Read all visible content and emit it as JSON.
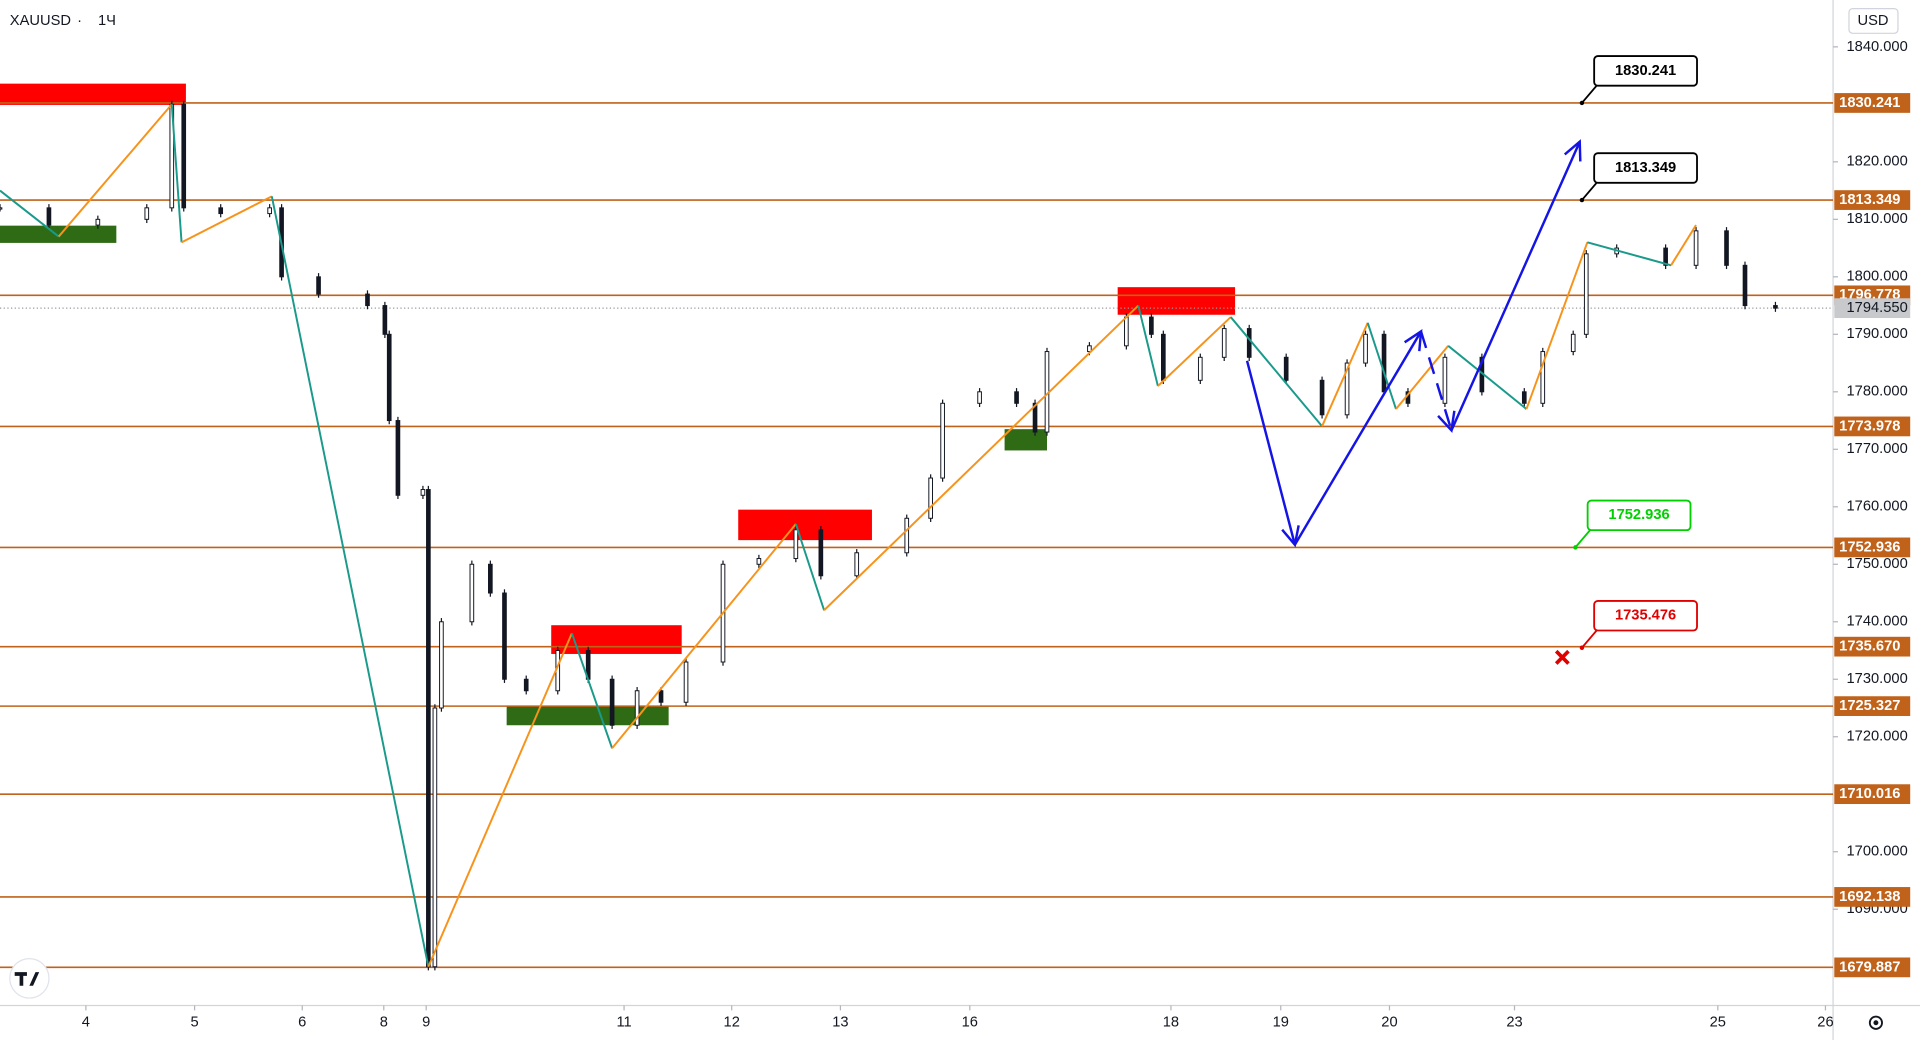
{
  "chart_data": {
    "type": "candlestick",
    "symbol": "XAUUSD",
    "interval": "1Ч",
    "currency": "USD",
    "xlim": [
      -0.79,
      16.07
    ],
    "ylim": [
      1673.26,
      1848.15
    ],
    "xticks": [
      {
        "value": 0,
        "label": "4"
      },
      {
        "value": 1,
        "label": "5"
      },
      {
        "value": 1.99,
        "label": "6"
      },
      {
        "value": 2.74,
        "label": "8"
      },
      {
        "value": 3.13,
        "label": "9"
      },
      {
        "value": 4.95,
        "label": "11"
      },
      {
        "value": 5.94,
        "label": "12"
      },
      {
        "value": 6.94,
        "label": "13"
      },
      {
        "value": 8.13,
        "label": "16"
      },
      {
        "value": 9.98,
        "label": "18"
      },
      {
        "value": 10.99,
        "label": "19"
      },
      {
        "value": 11.99,
        "label": "20"
      },
      {
        "value": 13.14,
        "label": "23"
      },
      {
        "value": 15.01,
        "label": "25"
      },
      {
        "value": 16.0,
        "label": "26"
      }
    ],
    "yticks": [
      {
        "value": 1840,
        "label": "1840.000"
      },
      {
        "value": 1820,
        "label": "1820.000"
      },
      {
        "value": 1810,
        "label": "1810.000"
      },
      {
        "value": 1800,
        "label": "1800.000"
      },
      {
        "value": 1790,
        "label": "1790.000"
      },
      {
        "value": 1780,
        "label": "1780.000"
      },
      {
        "value": 1770,
        "label": "1770.000"
      },
      {
        "value": 1760,
        "label": "1760.000"
      },
      {
        "value": 1750,
        "label": "1750.000"
      },
      {
        "value": 1740,
        "label": "1740.000"
      },
      {
        "value": 1730,
        "label": "1730.000"
      },
      {
        "value": 1720,
        "label": "1720.000"
      },
      {
        "value": 1700,
        "label": "1700.000"
      },
      {
        "value": 1690,
        "label": "1690.000"
      }
    ],
    "candles": {
      "x": [
        -0.79,
        -0.34,
        0.11,
        0.56,
        0.79,
        0.9,
        1.24,
        1.69,
        1.8,
        2.14,
        2.59,
        2.75,
        2.79,
        2.87,
        3.1,
        3.15,
        3.21,
        3.27,
        3.55,
        3.72,
        3.85,
        4.05,
        4.34,
        4.62,
        4.84,
        5.07,
        5.29,
        5.52,
        5.86,
        6.19,
        6.53,
        6.76,
        7.09,
        7.55,
        7.77,
        7.88,
        8.22,
        8.56,
        8.73,
        8.84,
        9.23,
        9.57,
        9.8,
        9.91,
        10.25,
        10.47,
        10.7,
        11.04,
        11.37,
        11.6,
        11.77,
        11.94,
        12.16,
        12.5,
        12.84,
        13.23,
        13.4,
        13.68,
        13.8,
        14.08,
        14.53,
        14.81,
        15.09,
        15.26,
        15.54
      ],
      "close": [
        1812,
        1809,
        1810,
        1812,
        1830,
        1812,
        1811,
        1812,
        1800,
        1797,
        1795,
        1790,
        1775,
        1762,
        1763,
        1680,
        1725,
        1740,
        1750,
        1745,
        1730,
        1728,
        1735,
        1730,
        1722,
        1728,
        1726,
        1733,
        1750,
        1751,
        1756,
        1748,
        1752,
        1758,
        1765,
        1778,
        1780,
        1778,
        1773,
        1787,
        1788,
        1793,
        1790,
        1782,
        1786,
        1791,
        1786,
        1782,
        1776,
        1785,
        1790,
        1780,
        1778,
        1786,
        1780,
        1778,
        1787,
        1790,
        1804,
        1805,
        1802,
        1808,
        1802,
        1795,
        1794.55
      ]
    },
    "candle_color": "#131722",
    "zigzag": {
      "x": [
        -0.79,
        -0.25,
        0.79,
        0.88,
        1.71,
        3.15,
        4.47,
        4.84,
        6.53,
        6.79,
        9.68,
        9.86,
        10.53,
        11.37,
        11.79,
        12.05,
        12.53,
        13.25,
        13.81,
        14.58,
        14.81
      ],
      "y": [
        1815,
        1807,
        1830,
        1806,
        1814,
        1680,
        1738,
        1718,
        1757,
        1742,
        1795,
        1781,
        1793,
        1774,
        1792,
        1777,
        1788,
        1777,
        1806,
        1802,
        1809
      ],
      "up_color": "#f7931a",
      "down_color": "#1a9a8a"
    },
    "zones": [
      {
        "color": "#ff0000",
        "x0": -0.79,
        "x1": 0.92,
        "y0": 1829.9,
        "y1": 1833.6
      },
      {
        "color": "#ff0000",
        "x0": 4.28,
        "x1": 5.48,
        "y0": 1734.4,
        "y1": 1739.4
      },
      {
        "color": "#ff0000",
        "x0": 6.0,
        "x1": 7.23,
        "y0": 1754.2,
        "y1": 1759.5
      },
      {
        "color": "#ff0000",
        "x0": 9.49,
        "x1": 10.57,
        "y0": 1793.4,
        "y1": 1798.2
      },
      {
        "color": "#2e6b14",
        "x0": -0.79,
        "x1": 0.28,
        "y0": 1805.9,
        "y1": 1808.9
      },
      {
        "color": "#2e6b14",
        "x0": 3.87,
        "x1": 5.36,
        "y0": 1722.0,
        "y1": 1725.4
      },
      {
        "color": "#2e6b14",
        "x0": 8.45,
        "x1": 8.84,
        "y0": 1769.8,
        "y1": 1773.5
      }
    ],
    "projection": {
      "x": [
        10.68,
        11.12,
        12.28,
        12.56,
        13.74
      ],
      "y": [
        1785.4,
        1753.4,
        1790.5,
        1773.3,
        1823.5
      ],
      "color": "#1414e6"
    },
    "levels": [
      1830.241,
      1813.349,
      1796.778,
      1773.978,
      1752.936,
      {
        "value": 1735.67,
        "label": "1735.670"
      },
      1725.327,
      1710.016,
      1692.138,
      1679.887
    ],
    "level_color": "#c0621a",
    "last_price": {
      "value": 1794.55,
      "label": "1794.550"
    },
    "callouts": [
      {
        "value": 1830.241,
        "color": "#000000",
        "x": 13.76
      },
      {
        "value": 1813.349,
        "color": "#000000",
        "x": 13.76
      },
      {
        "value": 1752.936,
        "color": "#00d000",
        "x": 13.7
      },
      {
        "value": 1735.476,
        "color": "#e00000",
        "x": 13.76
      }
    ],
    "stop_marker": {
      "x": 13.58,
      "y": 1733.8,
      "color": "#e00000"
    }
  }
}
